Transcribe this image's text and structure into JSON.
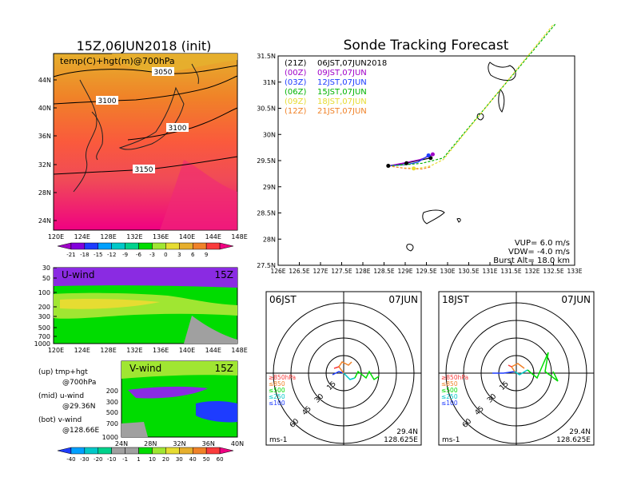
{
  "left": {
    "title": "15Z,06JUN2018 (init)",
    "map_label": "temp(C)+hgt(m)@700hPa",
    "lat_ticks": [
      "44N",
      "40N",
      "36N",
      "32N",
      "28N",
      "24N"
    ],
    "lon_ticks": [
      "120E",
      "124E",
      "128E",
      "132E",
      "136E",
      "140E",
      "144E",
      "148E"
    ],
    "contours": [
      "3050",
      "3100",
      "3100",
      "3150"
    ],
    "temp_colorbar": [
      "-21",
      "-18",
      "-15",
      "-12",
      "-9",
      "-6",
      "-3",
      "0",
      "3",
      "6",
      "9"
    ],
    "temp_colors": [
      "#a000c8",
      "#8200dc",
      "#1e3cff",
      "#00a0ff",
      "#00c8c8",
      "#00d28c",
      "#00dc00",
      "#a0e632",
      "#e6dc32",
      "#e6af2d",
      "#f08228",
      "#fa3c3c",
      "#f00082"
    ],
    "uwind": {
      "label": "U-wind",
      "time": "15Z",
      "p_ticks": [
        "30",
        "50",
        "100",
        "200",
        "300",
        "500",
        "700",
        "1000"
      ],
      "lon_ticks": [
        "120E",
        "124E",
        "128E",
        "132E",
        "136E",
        "140E",
        "144E",
        "148E"
      ]
    },
    "vwind": {
      "label": "V-wind",
      "time": "15Z",
      "p_ticks": [
        "200",
        "300",
        "500",
        "700",
        "1000"
      ],
      "lat_ticks": [
        "24N",
        "28N",
        "32N",
        "36N",
        "40N"
      ]
    },
    "wind_colorbar": [
      "-40",
      "-30",
      "-20",
      "-10",
      "-1",
      "1",
      "10",
      "20",
      "30",
      "40",
      "50",
      "60"
    ],
    "wind_colors": [
      "#1e3cff",
      "#00a0ff",
      "#00c8c8",
      "#00d28c",
      "#a0a0a0",
      "#a0a0a0",
      "#00dc00",
      "#a0e632",
      "#e6dc32",
      "#e6af2d",
      "#f08228",
      "#fa3c3c",
      "#f00082"
    ],
    "notes": [
      "(up) tmp+hgt",
      "@700hPa",
      "(mid) u-wind",
      "@29.36N",
      "(bot) v-wind",
      "@128.66E"
    ]
  },
  "chart_data": {
    "type": "line",
    "title": "Sonde Tracking Forecast",
    "xlim": [
      126,
      133
    ],
    "ylim": [
      27.5,
      31.5
    ],
    "x_ticks": [
      "126E",
      "126.5E",
      "127E",
      "127.5E",
      "128E",
      "128.5E",
      "129E",
      "129.5E",
      "130E",
      "130.5E",
      "131E",
      "131.5E",
      "132E",
      "132.5E",
      "133E"
    ],
    "y_ticks": [
      "27.5N",
      "28N",
      "28.5N",
      "29N",
      "29.5N",
      "30N",
      "30.5N",
      "31N",
      "31.5N"
    ],
    "legend": [
      {
        "code": "(21Z)",
        "text": "06JST,07JUN2018",
        "color": "#000000"
      },
      {
        "code": "(00Z)",
        "text": "09JST,07JUN",
        "color": "#a000c8"
      },
      {
        "code": "(03Z)",
        "text": "12JST,07JUN",
        "color": "#1e3cff"
      },
      {
        "code": "(06Z)",
        "text": "15JST,07JUN",
        "color": "#00b400"
      },
      {
        "code": "(09Z)",
        "text": "18JST,07JUN",
        "color": "#e6dc32"
      },
      {
        "code": "(12Z)",
        "text": "21JST,07JUN",
        "color": "#f08228"
      }
    ],
    "info": [
      "VUP= 6.0 m/s",
      "VDW= -4.0 m/s",
      "Burst Alt= 18.0 km"
    ],
    "series": [
      {
        "color": "#000000",
        "points": [
          [
            128.6,
            29.4
          ],
          [
            129.0,
            29.45
          ],
          [
            129.3,
            29.5
          ],
          [
            129.6,
            29.55
          ]
        ]
      },
      {
        "color": "#a000c8",
        "points": [
          [
            128.6,
            29.4
          ],
          [
            129.0,
            29.46
          ],
          [
            129.35,
            29.52
          ],
          [
            129.55,
            29.58
          ],
          [
            129.65,
            29.62
          ]
        ]
      },
      {
        "color": "#1e3cff",
        "points": [
          [
            128.6,
            29.4
          ],
          [
            129.0,
            29.42
          ],
          [
            129.3,
            29.47
          ],
          [
            129.55,
            29.6
          ]
        ]
      },
      {
        "color": "#00b400",
        "points": [
          [
            128.6,
            29.4
          ],
          [
            129.0,
            29.42
          ],
          [
            129.4,
            29.45
          ],
          [
            129.9,
            29.55
          ],
          [
            133.0,
            32.55
          ]
        ]
      },
      {
        "color": "#e6dc32",
        "points": [
          [
            128.6,
            29.4
          ],
          [
            128.95,
            29.36
          ],
          [
            129.3,
            29.35
          ],
          [
            129.6,
            29.4
          ],
          [
            129.9,
            29.52
          ],
          [
            133.0,
            32.6
          ]
        ]
      },
      {
        "color": "#f08228",
        "points": [
          [
            128.6,
            29.4
          ],
          [
            129.0,
            29.35
          ],
          [
            129.4,
            29.34
          ],
          [
            129.6,
            29.38
          ]
        ]
      }
    ],
    "markers": [
      {
        "x": 128.6,
        "y": 29.4,
        "color": "#000000"
      },
      {
        "x": 129.03,
        "y": 29.45,
        "color": "#000000"
      },
      {
        "x": 129.6,
        "y": 29.55,
        "color": "#000000"
      },
      {
        "x": 129.65,
        "y": 29.62,
        "color": "#a000c8"
      },
      {
        "x": 129.55,
        "y": 29.6,
        "color": "#1e3cff"
      },
      {
        "x": 129.2,
        "y": 29.35,
        "color": "#e6dc32"
      }
    ]
  },
  "hodo1": {
    "time": "06JST",
    "date": "07JUN",
    "rings": [
      "15",
      "30",
      "45",
      "60"
    ],
    "unit": "ms-1",
    "lat": "29.4N",
    "lon": "128.625E",
    "levels": [
      "≥850hPa",
      "≤850",
      "≤500",
      "≤250",
      "≤100"
    ],
    "level_colors": [
      "#fa3c3c",
      "#f08228",
      "#00dc00",
      "#00c8c8",
      "#1e3cff"
    ]
  },
  "hodo2": {
    "time": "18JST",
    "date": "07JUN",
    "rings": [
      "15",
      "30",
      "45",
      "60"
    ],
    "unit": "ms-1",
    "lat": "29.4N",
    "lon": "128.625E",
    "levels": [
      "≥850hPa",
      "≤850",
      "≤500",
      "≤250",
      "≤100"
    ],
    "level_colors": [
      "#fa3c3c",
      "#f08228",
      "#00dc00",
      "#00c8c8",
      "#1e3cff"
    ]
  }
}
